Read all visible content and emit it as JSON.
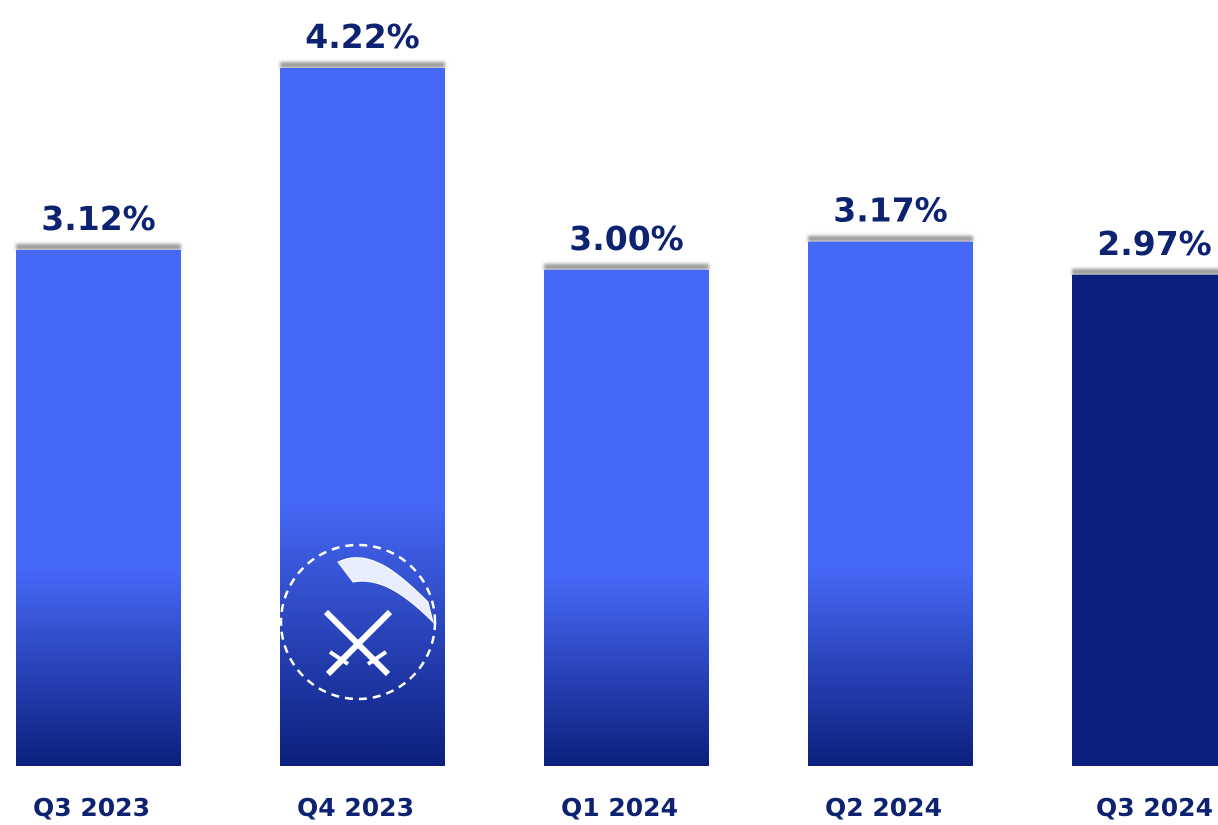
{
  "chart_data": {
    "type": "bar",
    "categories": [
      "Q3 2023",
      "Q4 2023",
      "Q1 2024",
      "Q2 2024",
      "Q3 2024"
    ],
    "values": [
      3.12,
      4.22,
      3.0,
      3.17,
      2.97
    ],
    "value_labels": [
      "3.12%",
      "4.22%",
      "3.00%",
      "3.17%",
      "2.97%"
    ],
    "colors": [
      "#4668f6",
      "#4668f6",
      "#4668f6",
      "#4668f6",
      "#0b1f7c"
    ]
  }
}
